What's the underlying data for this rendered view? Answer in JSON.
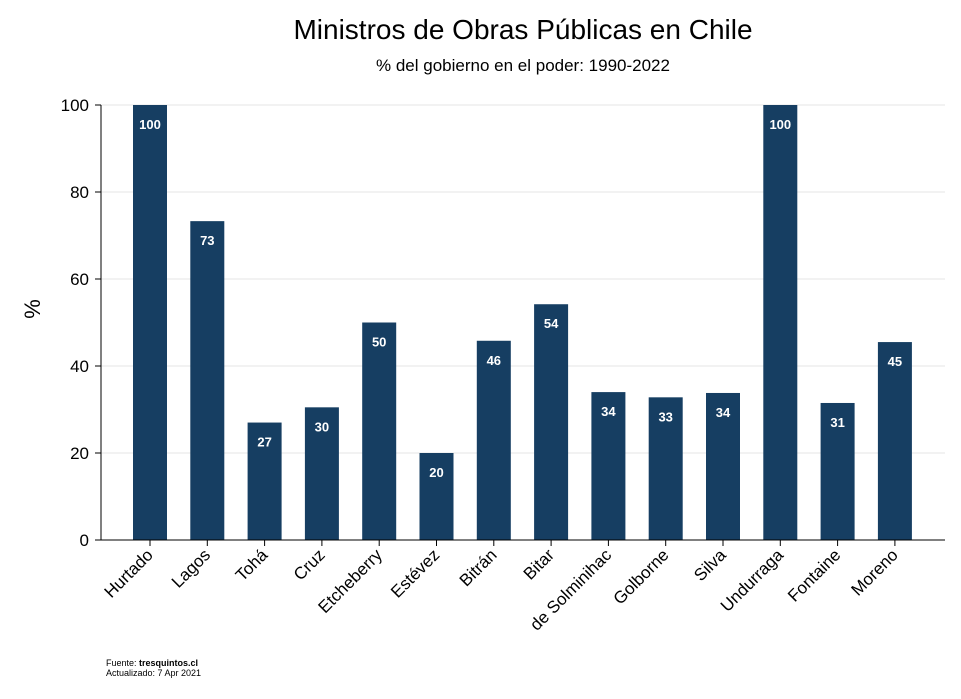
{
  "chart_data": {
    "type": "bar",
    "title": "Ministros de Obras Públicas en Chile",
    "subtitle": "% del gobierno en el poder: 1990-2022",
    "ylabel": "%",
    "xlabel": "",
    "ylim": [
      0,
      100
    ],
    "yticks": [
      0,
      20,
      40,
      60,
      80,
      100
    ],
    "grid": true,
    "categories": [
      "Hurtado",
      "Lagos",
      "Tohá",
      "Cruz",
      "Etcheberry",
      "Estévez",
      "Bitrán",
      "Bitar",
      "de Solminihac",
      "Golborne",
      "Silva",
      "Undurraga",
      "Fontaine",
      "Moreno"
    ],
    "values": [
      100,
      73.3,
      27,
      30.5,
      50,
      20,
      45.8,
      54.2,
      34,
      32.8,
      33.8,
      100,
      31.5,
      45.5
    ],
    "data_labels": [
      "100",
      "73",
      "27",
      "30",
      "50",
      "20",
      "46",
      "54",
      "34",
      "33",
      "34",
      "100",
      "31",
      "45"
    ],
    "bar_color": "#163e62"
  },
  "footer": {
    "source_prefix": "Fuente: ",
    "source": "tresquintos.cl",
    "updated": "Actualizado:  7 Apr 2021"
  }
}
